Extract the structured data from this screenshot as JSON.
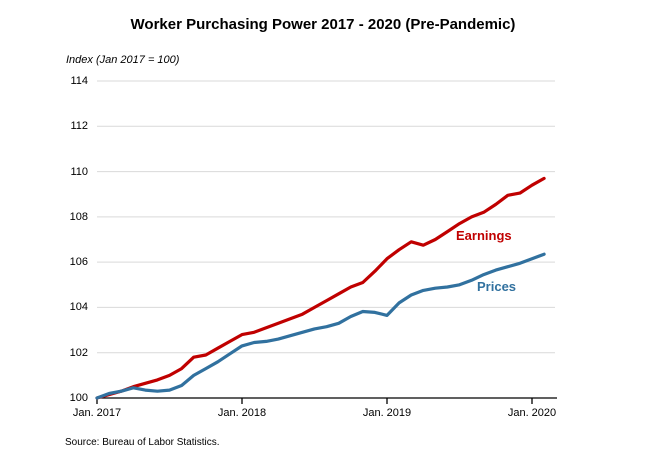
{
  "header": {
    "title": "Worker Purchasing Power 2017 - 2020 (Pre-Pandemic)"
  },
  "source_note": "Source: Bureau of Labor Statistics.",
  "colors": {
    "earnings": "#C00000",
    "prices": "#31719F",
    "gridline": "#D9D9D9",
    "axis": "#000000",
    "text": "#000000"
  },
  "chart_data": {
    "type": "line",
    "title": "Worker Purchasing Power 2017 - 2020 (Pre-Pandemic)",
    "axis_note": "Index (Jan 2017 = 100)",
    "xlabel": "",
    "ylabel": "Index (Jan 2017 = 100)",
    "frequency": "monthly",
    "x_start": "Jan 2017",
    "x_end": "Feb 2020",
    "ylim": [
      100,
      114
    ],
    "y_tick_values": [
      100,
      102,
      104,
      106,
      108,
      110,
      112,
      114
    ],
    "x_ticks": [
      {
        "label": "Jan. 2017",
        "month_index": 0
      },
      {
        "label": "Jan. 2018",
        "month_index": 12
      },
      {
        "label": "Jan. 2019",
        "month_index": 24
      },
      {
        "label": "Jan. 2020",
        "month_index": 36
      }
    ],
    "grid": "horizontal-only",
    "legend_position": "inline-labels-right-of-lines",
    "series": [
      {
        "name": "Earnings",
        "color": "#C00000",
        "values": [
          100.0,
          100.15,
          100.3,
          100.5,
          100.65,
          100.8,
          101.0,
          101.3,
          101.8,
          101.9,
          102.2,
          102.5,
          102.8,
          102.9,
          103.1,
          103.3,
          103.5,
          103.7,
          104.0,
          104.3,
          104.6,
          104.9,
          105.1,
          105.6,
          106.15,
          106.55,
          106.9,
          106.75,
          107.0,
          107.35,
          107.7,
          108.0,
          108.2,
          108.55,
          108.95,
          109.05,
          109.4,
          109.7
        ]
      },
      {
        "name": "Prices",
        "color": "#31719F",
        "values": [
          100.0,
          100.2,
          100.3,
          100.45,
          100.35,
          100.3,
          100.35,
          100.55,
          101.0,
          101.3,
          101.6,
          101.95,
          102.3,
          102.45,
          102.5,
          102.6,
          102.75,
          102.9,
          103.05,
          103.15,
          103.3,
          103.6,
          103.82,
          103.78,
          103.65,
          104.2,
          104.55,
          104.75,
          104.85,
          104.9,
          105.0,
          105.2,
          105.45,
          105.65,
          105.8,
          105.95,
          106.15,
          106.35
        ]
      }
    ]
  }
}
